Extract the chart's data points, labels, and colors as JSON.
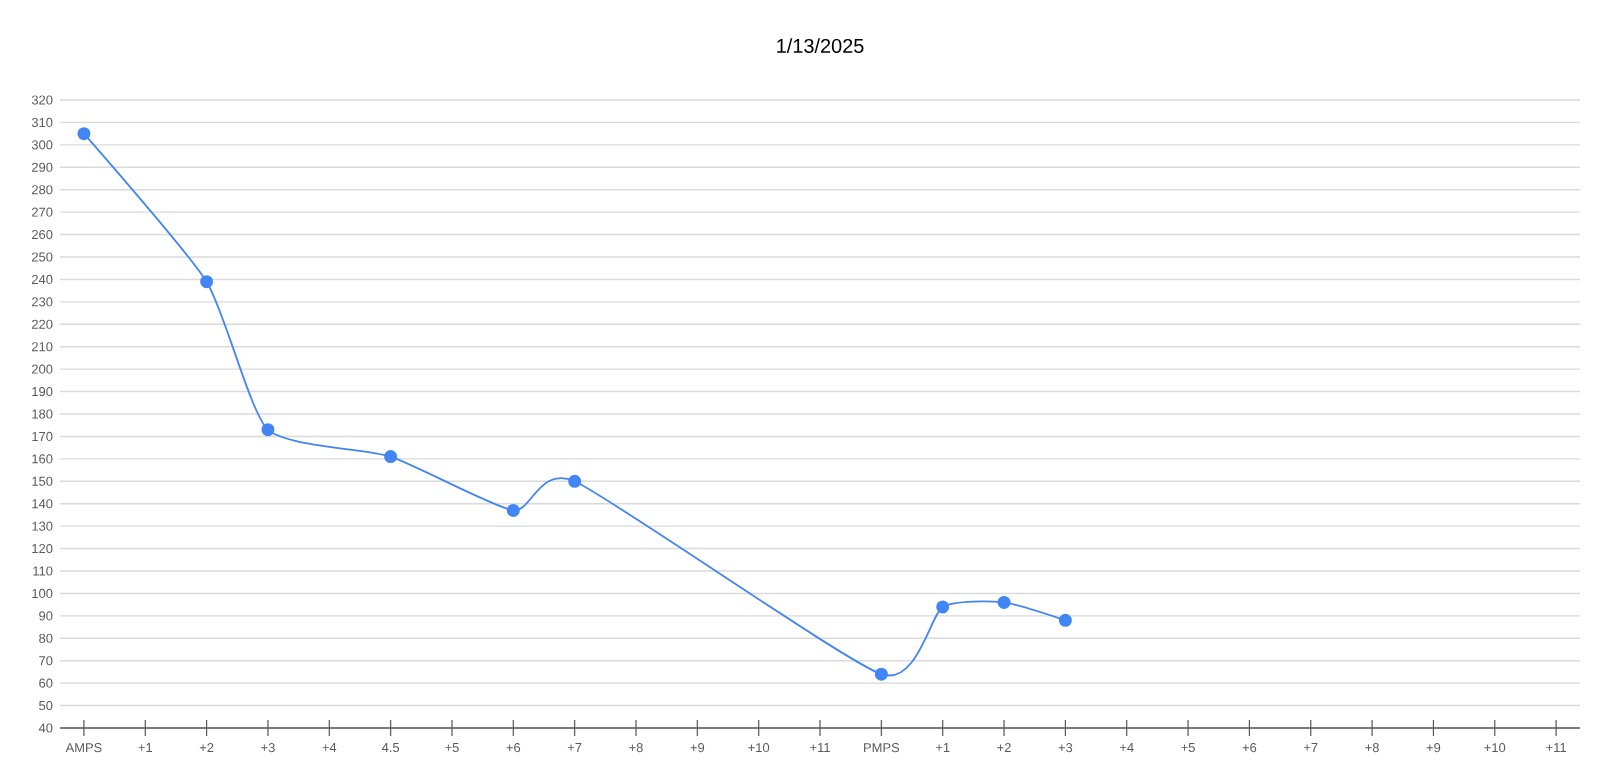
{
  "chart_data": {
    "type": "line",
    "title": "1/13/2025",
    "categories": [
      "AMPS",
      "+1",
      "+2",
      "+3",
      "+4",
      "4.5",
      "+5",
      "+6",
      "+7",
      "+8",
      "+9",
      "+10",
      "+11",
      "PMPS",
      "+1",
      "+2",
      "+3",
      "+4",
      "+5",
      "+6",
      "+7",
      "+8",
      "+9",
      "+10",
      "+11"
    ],
    "series": [
      {
        "color": "#4285f4",
        "values": [
          305,
          null,
          239,
          173,
          null,
          161,
          null,
          137,
          150,
          null,
          null,
          null,
          null,
          64,
          94,
          96,
          88,
          null,
          null,
          null,
          null,
          null,
          null,
          null,
          null
        ]
      }
    ],
    "ylim": [
      40,
      320
    ],
    "yticks": [
      40,
      50,
      60,
      70,
      80,
      90,
      100,
      110,
      120,
      130,
      140,
      150,
      160,
      170,
      180,
      190,
      200,
      210,
      220,
      230,
      240,
      250,
      260,
      270,
      280,
      290,
      300,
      310,
      320
    ],
    "grid": "y",
    "marker": "circle",
    "line_style": "solid"
  }
}
